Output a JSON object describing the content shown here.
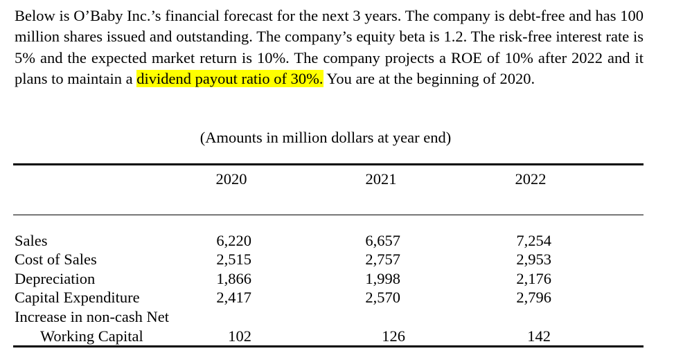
{
  "intro": {
    "before": "Below is O’Baby Inc.’s financial forecast for the next 3 years.  The company is debt-free and has 100 million shares issued and outstanding.  The company’s equity beta is 1.2.  The risk-free interest rate is 5% and the expected market return is 10%.  The company projects a ROE of 10% after 2022 and it plans to maintain a ",
    "highlight": "dividend payout ratio of 30%.",
    "after": "  You are at the beginning of 2020.",
    "highlight_color": "#ffff00"
  },
  "table": {
    "caption": "(Amounts in million dollars at year end)",
    "years": [
      "2020",
      "2021",
      "2022"
    ],
    "rows": [
      {
        "label": "Sales",
        "values": [
          "6,220",
          "6,657",
          "7,254"
        ]
      },
      {
        "label": "Cost of Sales",
        "values": [
          "2,515",
          "2,757",
          "2,953"
        ]
      },
      {
        "label": "Depreciation",
        "values": [
          "1,866",
          "1,998",
          "2,176"
        ]
      },
      {
        "label": "Capital Expenditure",
        "values": [
          "2,417",
          "2,570",
          "2,796"
        ]
      },
      {
        "label": "Increase in non-cash Net",
        "label2": "Working Capital",
        "values": [
          "102",
          "126",
          "142"
        ]
      }
    ]
  }
}
